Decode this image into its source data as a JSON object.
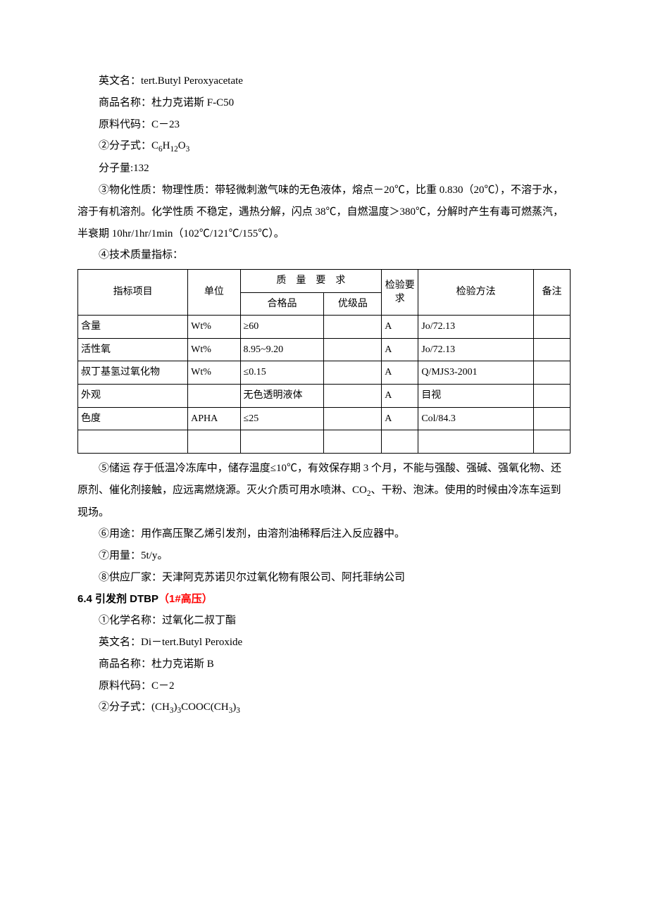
{
  "body": {
    "line1": "英文名：tert.Butyl Peroxyacetate",
    "line2": "商品名称：杜力克诺斯 F-C50",
    "line3": "原料代码：C－23",
    "line4_label": "②分子式：",
    "line4_formula": "C<sub>6</sub>H<sub>12</sub>O<sub>3</sub>",
    "line5": "分子量:132",
    "line6": "③物化性质：物理性质：带轻微刺激气味的无色液体，熔点－20℃，比重 0.830（20℃），不溶于水，溶于有机溶剂。化学性质 不稳定，遇热分解，闪点 38℃，自燃温度＞380℃，分解时产生有毒可燃蒸汽，半衰期 10hr/1hr/1min（102℃/121℃/155℃）。",
    "line7": "④技术质量指标：",
    "line8_label": "⑤储运 存于低温冷冻库中，储存温度≤10℃，有效保存期 3 个月，不能与强酸、强碱、强氧化物、还原剂、催化剂接触，应远离燃烧源。灭火介质可用水喷淋、CO",
    "line8_sub": "2",
    "line8_tail": "、干粉、泡沫。使用的时候由冷冻车运到现场。",
    "line9": "⑥用途：用作高压聚乙烯引发剂，由溶剂油稀释后注入反应器中。",
    "line10": "⑦用量：5t/y。",
    "line11": "⑧供应厂家：天津阿克苏诺贝尔过氧化物有限公司、阿托菲纳公司"
  },
  "table": {
    "headers": {
      "col1": "指标项目",
      "col2": "单位",
      "col3": "质　量　要　求",
      "col3a": "合格品",
      "col3b": "优级品",
      "col4": "检验要求",
      "col5": "检验方法",
      "col6": "备注"
    },
    "rows": [
      {
        "c1": "含量",
        "c2": "Wt%",
        "c3": "≥60",
        "c4": "",
        "c5": "A",
        "c6": "Jo/72.13",
        "c7": ""
      },
      {
        "c1": "活性氧",
        "c2": "Wt%",
        "c3": "8.95~9.20",
        "c4": "",
        "c5": "A",
        "c6": "Jo/72.13",
        "c7": ""
      },
      {
        "c1": "叔丁基氢过氧化物",
        "c2": "Wt%",
        "c3": "≤0.15",
        "c4": "",
        "c5": "A",
        "c6": "Q/MJS3-2001",
        "c7": ""
      },
      {
        "c1": "外观",
        "c2": "",
        "c3": "无色透明液体",
        "c4": "",
        "c5": "A",
        "c6": "目视",
        "c7": ""
      },
      {
        "c1": "色度",
        "c2": "APHA",
        "c3": "≤25",
        "c4": "",
        "c5": "A",
        "c6": "Col/84.3",
        "c7": ""
      },
      {
        "c1": "",
        "c2": "",
        "c3": "",
        "c4": "",
        "c5": "",
        "c6": "",
        "c7": ""
      }
    ],
    "col_widths": [
      "21%",
      "10%",
      "16%",
      "11%",
      "7%",
      "22%",
      "7%"
    ],
    "border_color": "#000000",
    "font_size": 14
  },
  "section64": {
    "heading_black": "6.4 引发剂 DTBP",
    "heading_red": "（1#高压）",
    "line1": "①化学名称：过氧化二叔丁酯",
    "line2": "英文名：Di－tert.Butyl Peroxide",
    "line3": "商品名称：杜力克诺斯 B",
    "line4": "原料代码：C－2",
    "line5_label": "②分子式：",
    "line5_formula": "(CH<sub>3</sub>)<sub>3</sub>COOC(CH<sub>3</sub>)<sub>3</sub>"
  },
  "colors": {
    "text": "#000000",
    "red": "#ff0000",
    "background": "#ffffff",
    "table_border": "#000000"
  }
}
